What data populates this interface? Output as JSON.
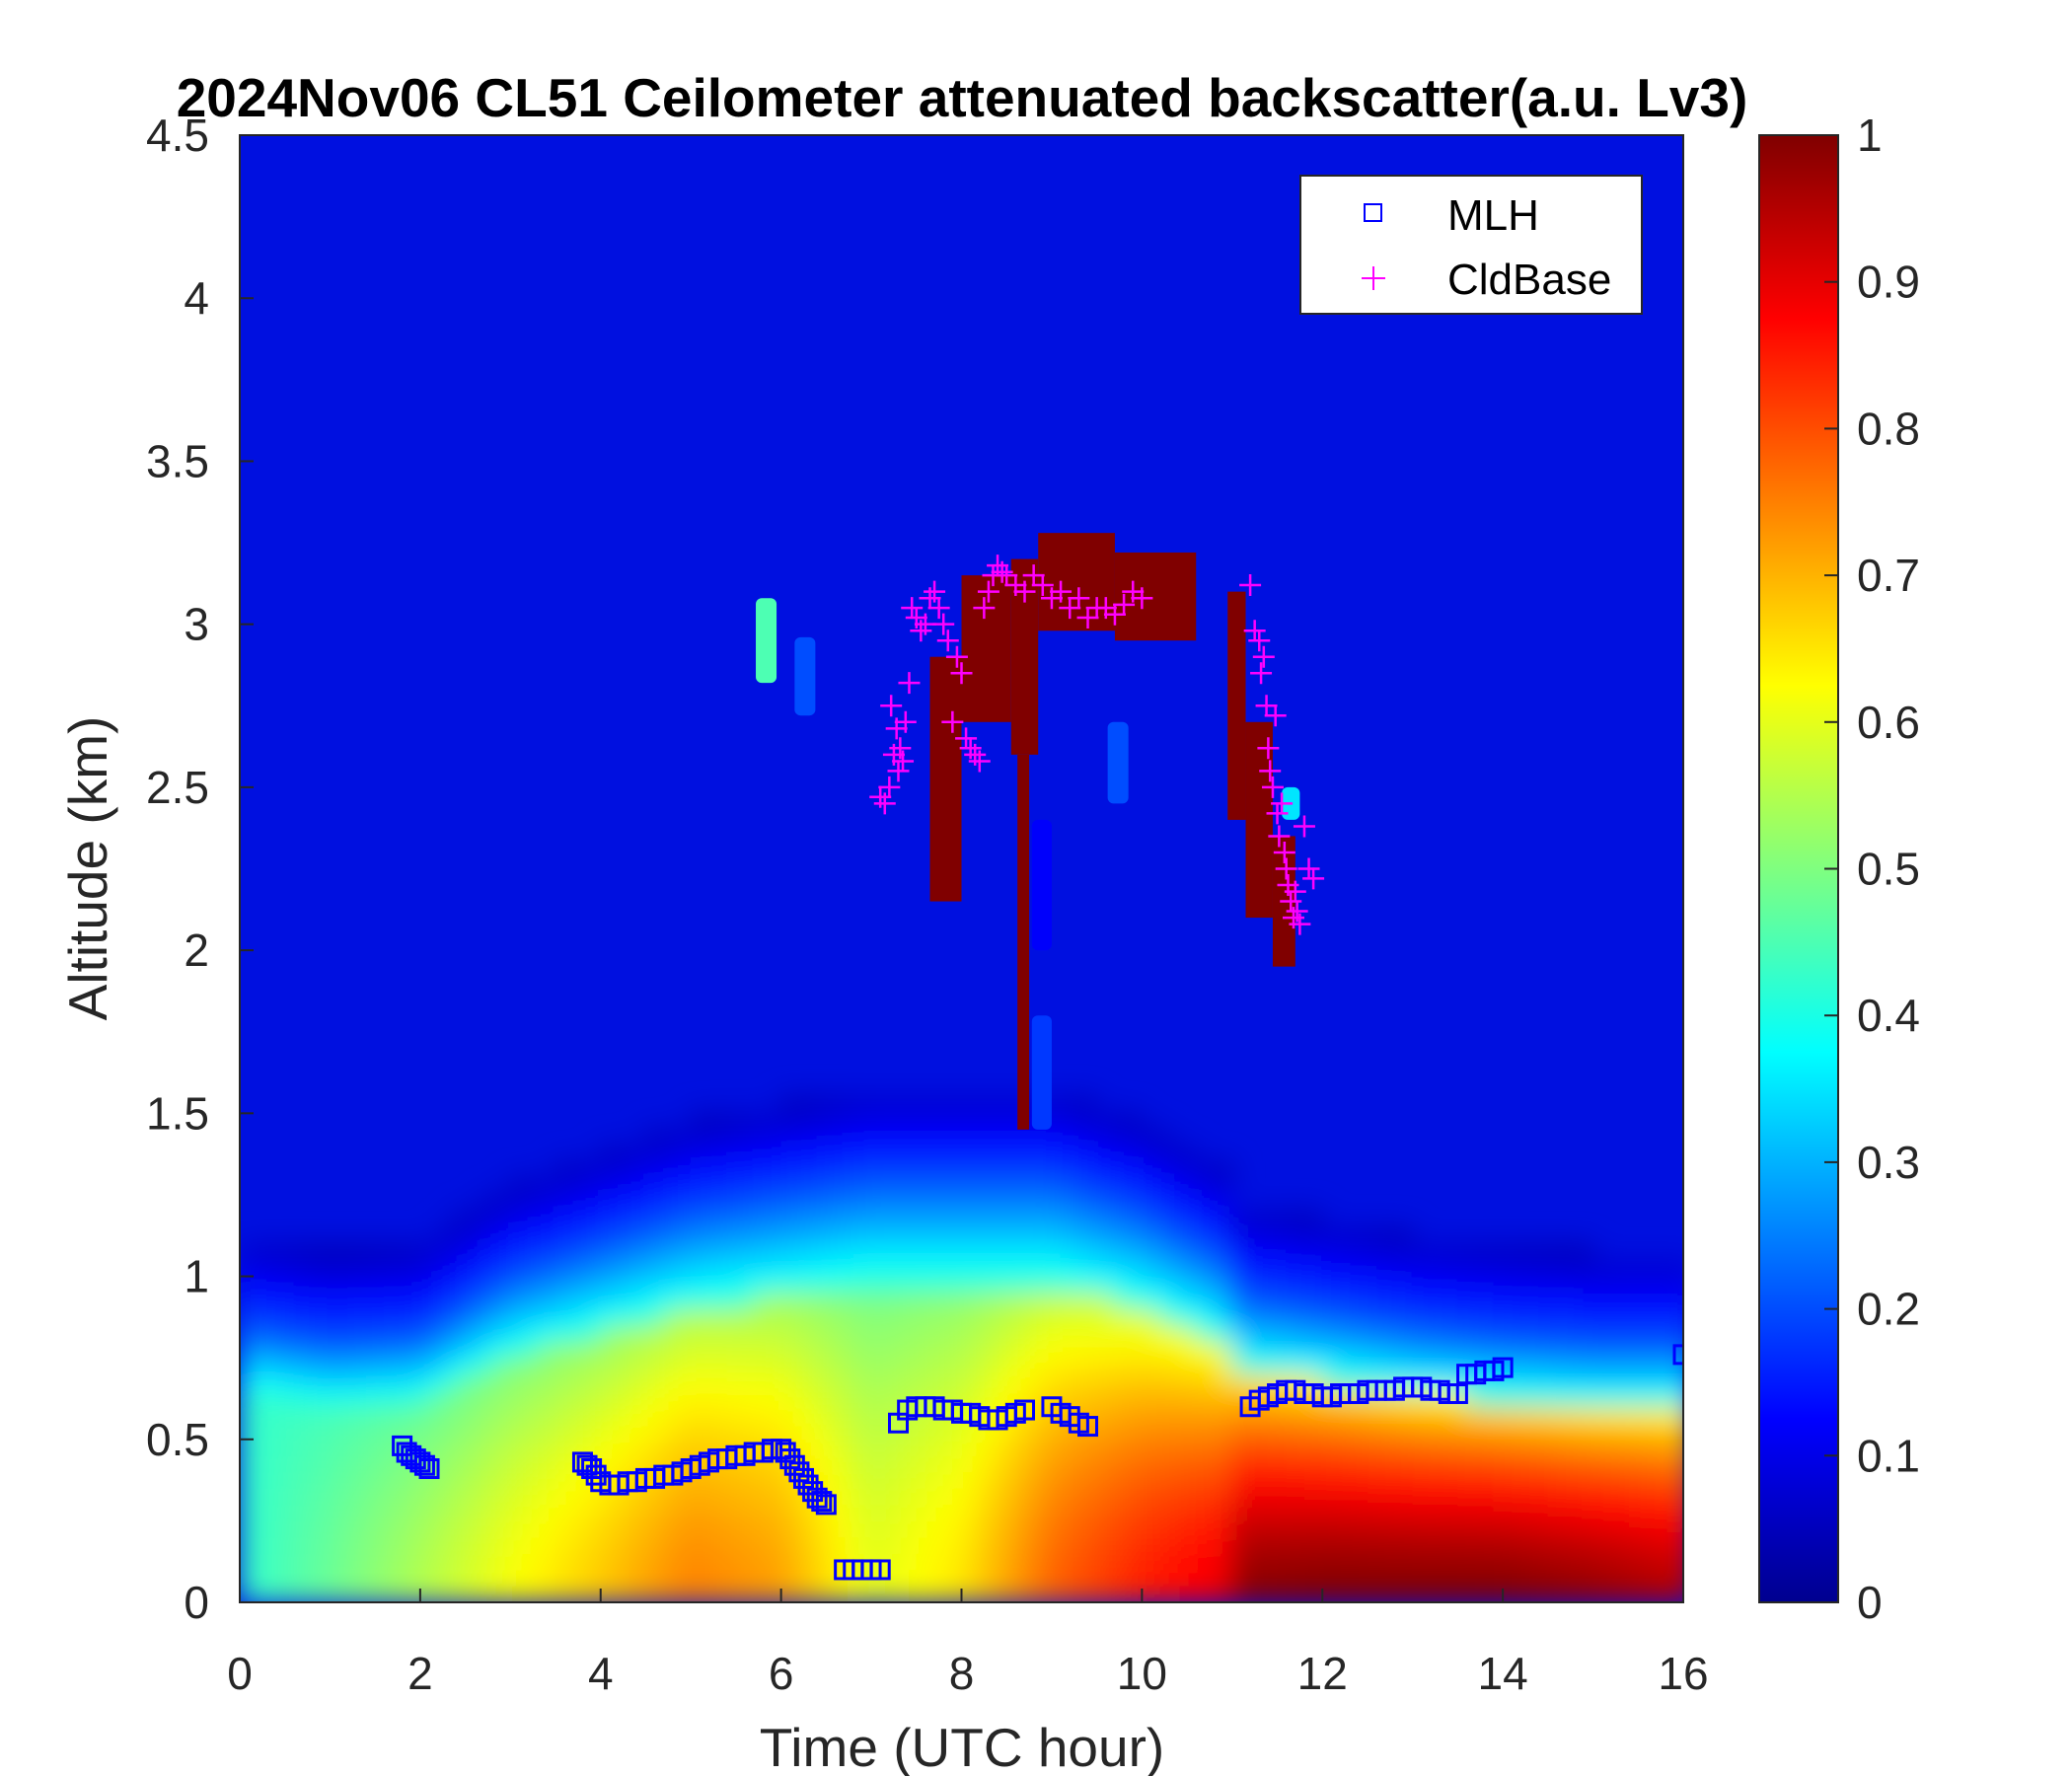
{
  "chart_data": {
    "type": "heatmap",
    "title": "2024Nov06 CL51 Ceilometer attenuated backscatter(a.u. Lv3)",
    "xlabel": "Time (UTC hour)",
    "ylabel": "Altitude (km)",
    "xlim": [
      0,
      16
    ],
    "ylim": [
      0,
      4.5
    ],
    "xticks": [
      "0",
      "2",
      "4",
      "6",
      "8",
      "10",
      "12",
      "14",
      "16"
    ],
    "yticks": [
      "0",
      "0.5",
      "1",
      "1.5",
      "2",
      "2.5",
      "3",
      "3.5",
      "4",
      "4.5"
    ],
    "colorbar": {
      "range": [
        0,
        1
      ],
      "ticks": [
        "0",
        "0.1",
        "0.2",
        "0.3",
        "0.4",
        "0.5",
        "0.6",
        "0.7",
        "0.8",
        "0.9",
        "1"
      ],
      "colormap": "jet"
    },
    "legend": {
      "placement": "top-right",
      "entries": [
        {
          "label": "MLH",
          "marker": "square",
          "color": "#0000ff"
        },
        {
          "label": "CldBase",
          "marker": "plus",
          "color": "#ff00ff"
        }
      ]
    },
    "background_profile": {
      "description_free": true,
      "x": [
        0,
        1,
        2,
        3,
        4,
        5,
        6,
        7,
        8,
        9,
        10,
        10.95,
        11,
        12,
        13,
        14,
        15,
        16
      ],
      "surface_value": [
        0.42,
        0.48,
        0.55,
        0.62,
        0.68,
        0.75,
        0.72,
        0.6,
        0.65,
        0.78,
        0.85,
        0.9,
        0.99,
        1.0,
        1.0,
        1.0,
        0.98,
        0.95
      ],
      "layer_top_km": [
        0.85,
        0.8,
        0.82,
        1.0,
        1.1,
        1.2,
        1.25,
        1.3,
        1.3,
        1.3,
        1.2,
        1.05,
        0.95,
        0.9,
        0.85,
        0.82,
        0.8,
        0.8
      ]
    },
    "cloud_blocks": [
      {
        "x": [
          5.72,
          5.95
        ],
        "y": [
          2.82,
          3.08
        ],
        "value": 0.45
      },
      {
        "x": [
          6.15,
          6.38
        ],
        "y": [
          2.72,
          2.96
        ],
        "value": 0.2
      },
      {
        "x": [
          9.62,
          9.85
        ],
        "y": [
          2.45,
          2.7
        ],
        "value": 0.2
      },
      {
        "x": [
          8.78,
          9.0
        ],
        "y": [
          1.45,
          1.8
        ],
        "value": 0.18
      },
      {
        "x": [
          8.78,
          9.0
        ],
        "y": [
          2.0,
          2.4
        ],
        "value": 0.12
      },
      {
        "x": [
          11.55,
          11.75
        ],
        "y": [
          2.4,
          2.5
        ],
        "value": 0.35
      }
    ],
    "cloud_core": [
      {
        "x": [
          7.65,
          8.0
        ],
        "y": [
          2.15,
          2.9
        ],
        "value": 1.0
      },
      {
        "x": [
          8.0,
          8.55
        ],
        "y": [
          2.7,
          3.15
        ],
        "value": 1.0
      },
      {
        "x": [
          8.55,
          8.85
        ],
        "y": [
          2.6,
          3.2
        ],
        "value": 1.0
      },
      {
        "x": [
          8.62,
          8.75
        ],
        "y": [
          1.45,
          2.6
        ],
        "value": 1.0
      },
      {
        "x": [
          8.85,
          9.7
        ],
        "y": [
          2.98,
          3.28
        ],
        "value": 1.0
      },
      {
        "x": [
          9.7,
          10.6
        ],
        "y": [
          2.95,
          3.22
        ],
        "value": 1.0
      },
      {
        "x": [
          10.95,
          11.15
        ],
        "y": [
          2.4,
          3.1
        ],
        "value": 1.0
      },
      {
        "x": [
          11.15,
          11.45
        ],
        "y": [
          2.1,
          2.7
        ],
        "value": 1.0
      },
      {
        "x": [
          11.45,
          11.7
        ],
        "y": [
          1.95,
          2.35
        ],
        "value": 1.0
      }
    ],
    "series": [
      {
        "name": "MLH",
        "marker": "square",
        "x": [
          1.8,
          1.85,
          1.9,
          1.95,
          2.0,
          2.05,
          2.1,
          3.8,
          3.85,
          3.9,
          3.95,
          4.0,
          4.1,
          4.2,
          4.3,
          4.4,
          4.5,
          4.6,
          4.7,
          4.8,
          4.9,
          5.0,
          5.1,
          5.2,
          5.3,
          5.4,
          5.5,
          5.6,
          5.7,
          5.8,
          5.9,
          6.0,
          6.05,
          6.1,
          6.15,
          6.2,
          6.25,
          6.3,
          6.35,
          6.4,
          6.45,
          6.5,
          6.7,
          6.8,
          6.9,
          7.0,
          7.1,
          7.3,
          7.4,
          7.5,
          7.6,
          7.7,
          7.8,
          7.9,
          8.0,
          8.1,
          8.2,
          8.3,
          8.4,
          8.5,
          8.6,
          8.7,
          9.0,
          9.1,
          9.2,
          9.3,
          9.4,
          11.2,
          11.3,
          11.4,
          11.5,
          11.6,
          11.7,
          11.8,
          11.9,
          12.0,
          12.1,
          12.2,
          12.3,
          12.4,
          12.5,
          12.6,
          12.7,
          12.8,
          12.9,
          13.0,
          13.1,
          13.2,
          13.3,
          13.4,
          13.5,
          13.6,
          13.7,
          13.8,
          13.9,
          14.0,
          16.0
        ],
        "y": [
          0.48,
          0.46,
          0.45,
          0.44,
          0.43,
          0.42,
          0.41,
          0.43,
          0.42,
          0.41,
          0.39,
          0.37,
          0.36,
          0.36,
          0.37,
          0.37,
          0.38,
          0.38,
          0.39,
          0.39,
          0.4,
          0.41,
          0.42,
          0.43,
          0.44,
          0.44,
          0.45,
          0.45,
          0.46,
          0.46,
          0.47,
          0.47,
          0.46,
          0.44,
          0.42,
          0.4,
          0.38,
          0.36,
          0.34,
          0.32,
          0.31,
          0.3,
          0.1,
          0.1,
          0.1,
          0.1,
          0.1,
          0.55,
          0.59,
          0.6,
          0.6,
          0.6,
          0.59,
          0.59,
          0.58,
          0.58,
          0.57,
          0.56,
          0.56,
          0.57,
          0.58,
          0.59,
          0.6,
          0.58,
          0.57,
          0.55,
          0.54,
          0.6,
          0.62,
          0.63,
          0.64,
          0.65,
          0.65,
          0.64,
          0.64,
          0.63,
          0.63,
          0.64,
          0.64,
          0.64,
          0.65,
          0.65,
          0.65,
          0.65,
          0.66,
          0.66,
          0.66,
          0.65,
          0.65,
          0.64,
          0.64,
          0.7,
          0.7,
          0.71,
          0.71,
          0.72,
          0.76
        ]
      },
      {
        "name": "CldBase",
        "marker": "plus",
        "x": [
          7.1,
          7.15,
          7.2,
          7.22,
          7.25,
          7.28,
          7.3,
          7.32,
          7.35,
          7.38,
          7.42,
          7.45,
          7.5,
          7.55,
          7.6,
          7.65,
          7.7,
          7.75,
          7.8,
          7.85,
          7.9,
          7.95,
          8.0,
          8.05,
          8.1,
          8.15,
          8.2,
          8.25,
          8.3,
          8.35,
          8.4,
          8.45,
          8.5,
          8.6,
          8.7,
          8.8,
          8.9,
          9.0,
          9.1,
          9.2,
          9.3,
          9.4,
          9.5,
          9.6,
          9.7,
          9.8,
          9.9,
          10.0,
          11.2,
          11.25,
          11.3,
          11.32,
          11.35,
          11.38,
          11.4,
          11.42,
          11.45,
          11.48,
          11.5,
          11.52,
          11.55,
          11.58,
          11.6,
          11.62,
          11.65,
          11.68,
          11.7,
          11.72,
          11.75,
          11.8,
          11.85,
          11.9
        ],
        "y": [
          2.47,
          2.45,
          2.5,
          2.75,
          2.6,
          2.68,
          2.55,
          2.62,
          2.58,
          2.7,
          2.82,
          3.05,
          3.02,
          2.98,
          3.0,
          3.08,
          3.1,
          3.05,
          3.0,
          2.95,
          2.7,
          2.9,
          2.85,
          2.65,
          2.62,
          2.6,
          2.58,
          3.05,
          3.1,
          3.15,
          3.18,
          3.16,
          3.15,
          3.12,
          3.1,
          3.15,
          3.12,
          3.08,
          3.1,
          3.05,
          3.08,
          3.02,
          3.05,
          3.05,
          3.03,
          3.06,
          3.1,
          3.08,
          3.12,
          2.98,
          2.95,
          2.85,
          2.9,
          2.75,
          2.62,
          2.55,
          2.5,
          2.72,
          2.42,
          2.35,
          2.45,
          2.3,
          2.25,
          2.2,
          2.15,
          2.1,
          2.18,
          2.12,
          2.08,
          2.38,
          2.25,
          2.22
        ]
      }
    ]
  }
}
